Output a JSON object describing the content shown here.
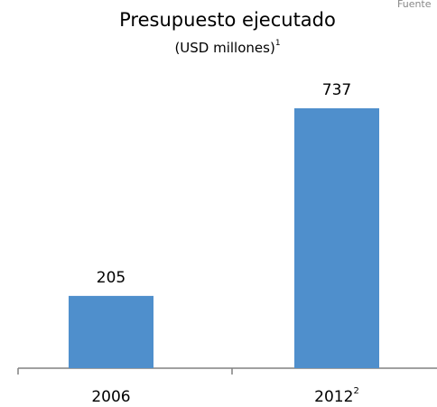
{
  "chart_data": {
    "type": "bar",
    "title": "Presupuesto ejecutado",
    "subtitle": "(USD millones)",
    "subtitle_footnote": "1",
    "source": "Fuente",
    "categories": [
      "2006",
      "2012"
    ],
    "category_footnotes": [
      null,
      "2"
    ],
    "values": [
      205,
      737
    ],
    "color": "#4f8fcc",
    "grid": false
  }
}
